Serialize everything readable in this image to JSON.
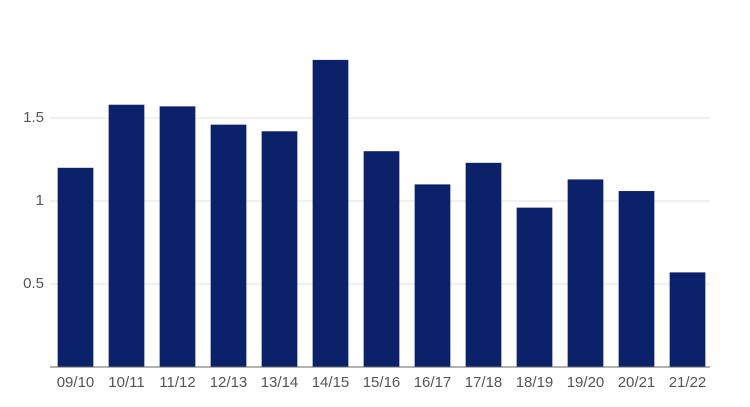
{
  "chart_data": {
    "type": "bar",
    "categories": [
      "09/10",
      "10/11",
      "11/12",
      "12/13",
      "13/14",
      "14/15",
      "15/16",
      "16/17",
      "17/18",
      "18/19",
      "19/20",
      "20/21",
      "21/22"
    ],
    "values": [
      1.2,
      1.58,
      1.57,
      1.46,
      1.42,
      1.85,
      1.3,
      1.1,
      1.23,
      0.96,
      1.13,
      1.06,
      0.57
    ],
    "color": "#0b2169",
    "ylim": [
      0,
      2
    ],
    "yticks": [
      0.5,
      1,
      1.5
    ],
    "grid": true
  }
}
